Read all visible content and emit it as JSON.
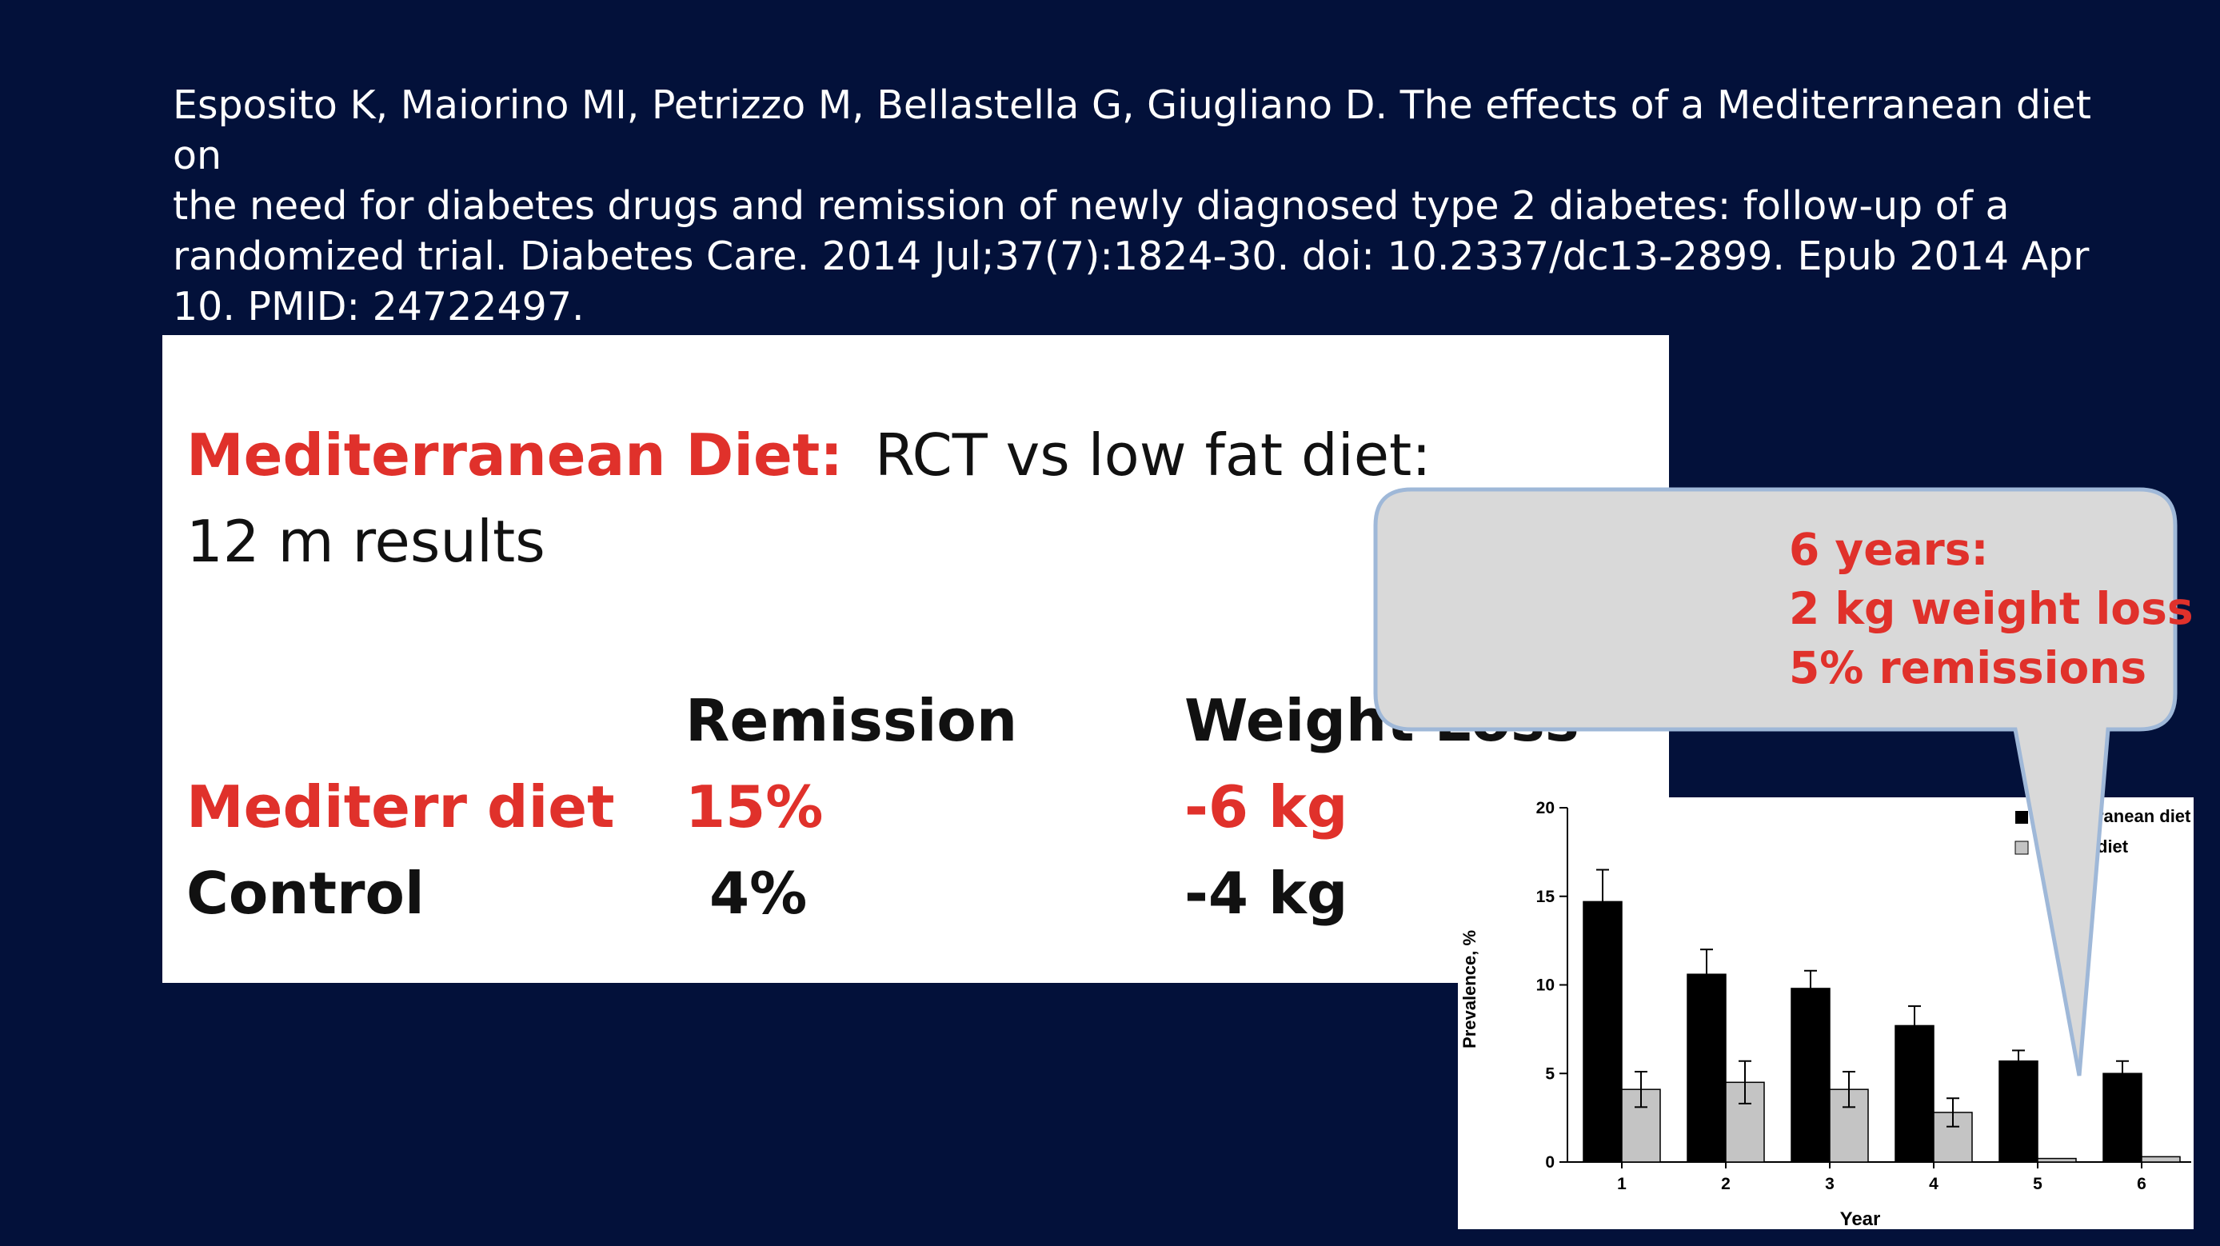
{
  "citation": {
    "lines": [
      "Esposito K, Maiorino MI, Petrizzo M, Bellastella G, Giugliano D. The effects of a Mediterranean diet on",
      "the need for diabetes drugs and remission of newly diagnosed type 2 diabetes: follow-up of a",
      "randomized trial. Diabetes Care. 2014 Jul;37(7):1824-30. doi: 10.2337/dc13-2899. Epub 2014 Apr",
      "10. PMID: 24722497."
    ]
  },
  "card": {
    "heading_red": "Mediterranean Diet:",
    "heading_rest": "RCT vs low fat diet:",
    "subheading": "12 m results",
    "table": {
      "col_remission": "Remission",
      "col_weight": "Weight Loss",
      "rows": [
        {
          "label": "Mediterr diet",
          "remission": "15%",
          "weight": "-6 kg"
        },
        {
          "label": "Control",
          "remission": "4%",
          "weight": "-4 kg"
        }
      ]
    }
  },
  "callout": {
    "lines": [
      "6 years:",
      "2 kg weight loss",
      "5% remissions"
    ]
  },
  "colors": {
    "background": "#03113a",
    "accent_red": "#e0312b",
    "bar_med": "#000000",
    "bar_control": "#c4c4c4"
  },
  "chart_data": {
    "type": "bar",
    "xlabel": "Year",
    "ylabel": "Prevalence, %",
    "ylim": [
      0,
      20
    ],
    "yticks": [
      "0",
      "5",
      "10",
      "15",
      "20"
    ],
    "categories": [
      "1",
      "2",
      "3",
      "4",
      "5",
      "6"
    ],
    "legend_placement": "top-right",
    "legend_visible_text": [
      "ranean diet",
      "diet"
    ],
    "series": [
      {
        "values": [
          14.7,
          10.6,
          9.8,
          7.7,
          5.7,
          5.0
        ],
        "errors": [
          1.8,
          1.4,
          1.0,
          1.1,
          0.6,
          0.7
        ],
        "color": "#000000"
      },
      {
        "values": [
          4.1,
          4.5,
          4.1,
          2.8,
          0.2,
          0.3
        ],
        "errors": [
          1.0,
          1.2,
          1.0,
          0.8,
          0,
          0
        ],
        "color": "#c4c4c4"
      }
    ]
  }
}
